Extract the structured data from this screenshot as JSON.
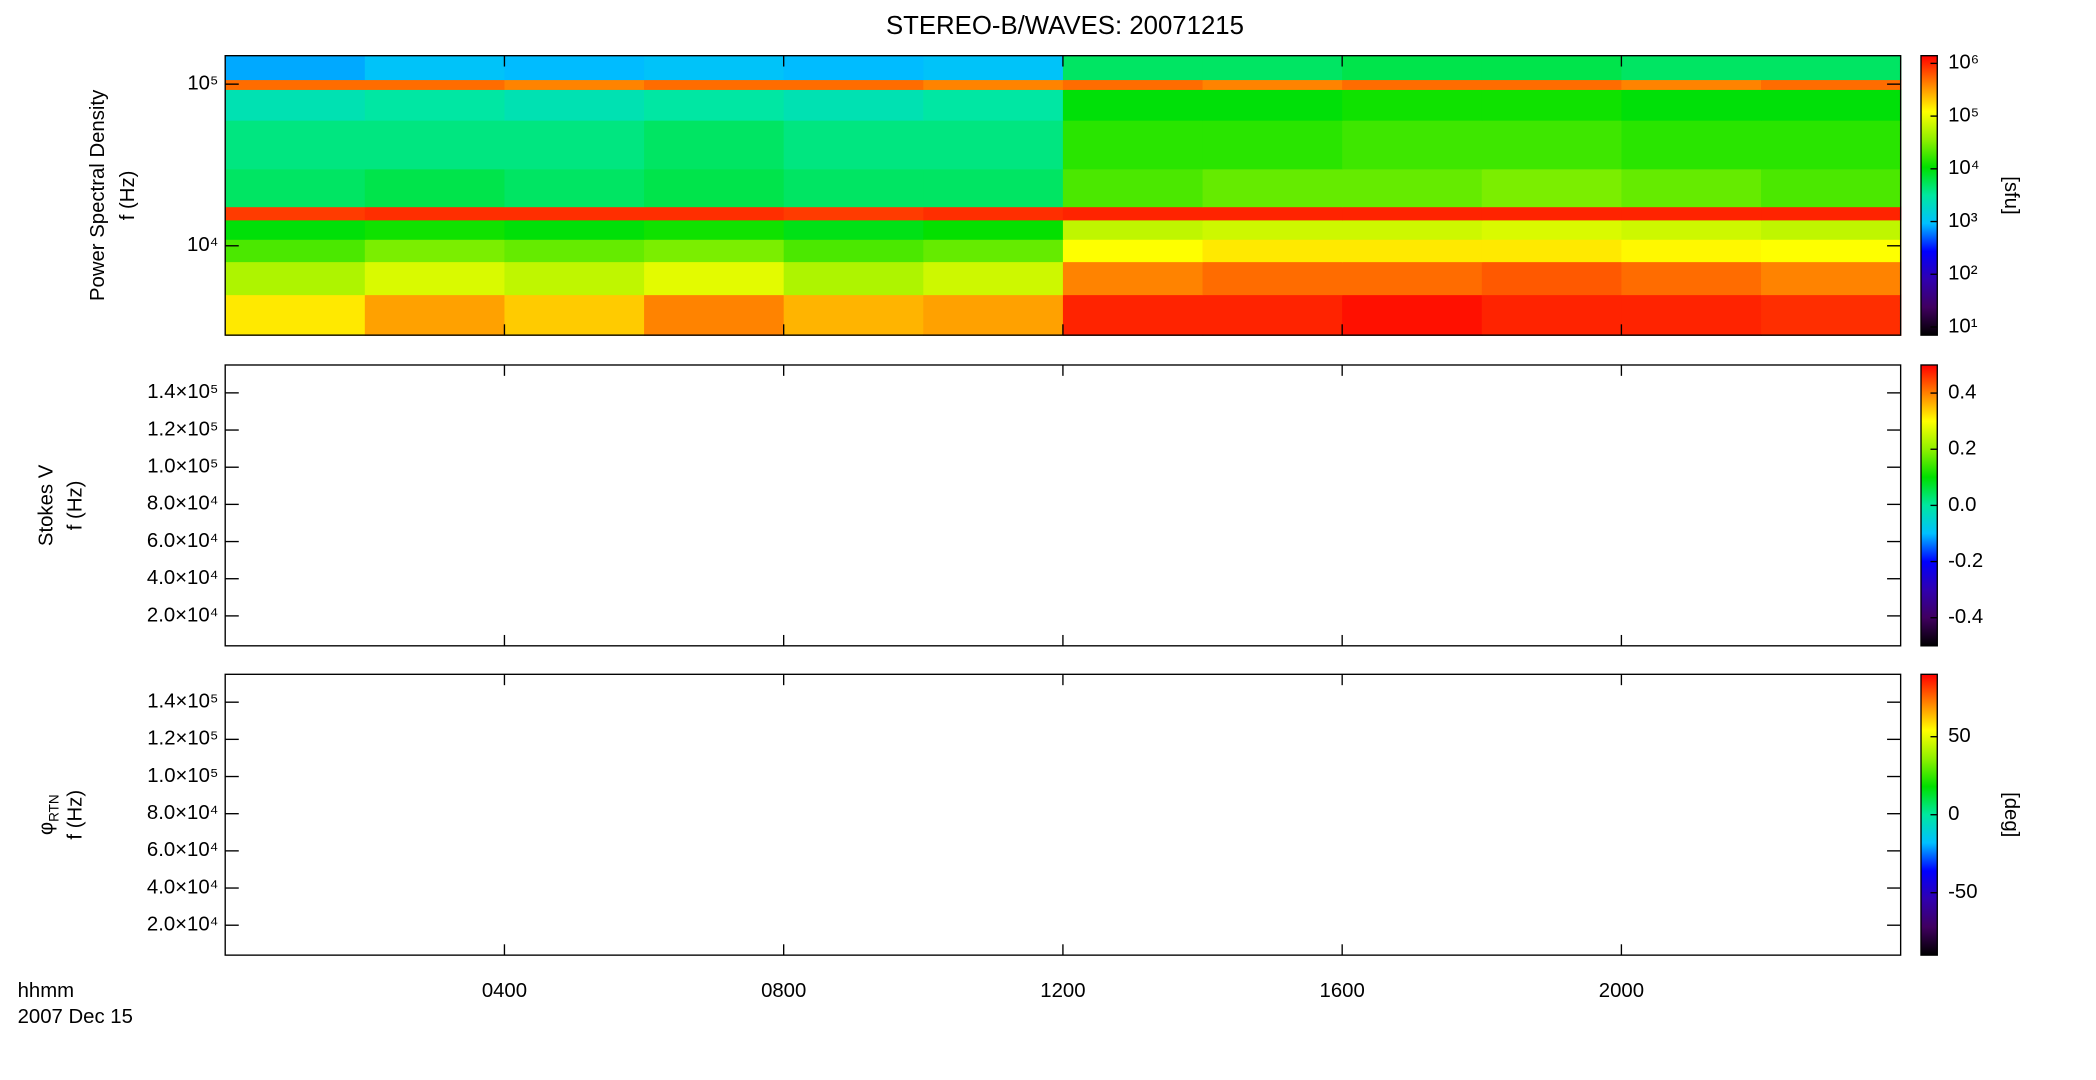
{
  "chart_data": [
    {
      "type": "heatmap",
      "title": "STEREO-B/WAVES: 20071215",
      "ylabel": "Power Spectral Density",
      "ylabel2": "f (Hz)",
      "ylog": true,
      "ylim": [
        2800,
        150000
      ],
      "yticks": [
        {
          "value": 10000,
          "label": "10⁴"
        },
        {
          "value": 100000,
          "label": "10⁵"
        }
      ],
      "xlim": [
        0,
        24
      ],
      "x_bins": [
        0,
        2,
        4,
        6,
        8,
        10,
        12,
        14,
        16,
        18,
        20,
        22,
        24
      ],
      "y_bins": [
        2800,
        5000,
        8000,
        11000,
        14500,
        17500,
        30000,
        60000,
        93000,
        107000,
        150000
      ],
      "values": [
        [
          150000,
          300000,
          200000,
          400000,
          250000,
          300000,
          1000000,
          1000000,
          1200000,
          1000000,
          1000000,
          900000
        ],
        [
          50000,
          80000,
          60000,
          90000,
          50000,
          70000,
          400000,
          500000,
          500000,
          600000,
          500000,
          400000
        ],
        [
          20000,
          30000,
          25000,
          30000,
          20000,
          25000,
          120000,
          150000,
          150000,
          150000,
          130000,
          120000
        ],
        [
          10000,
          12000,
          10000,
          12000,
          9000,
          11000,
          60000,
          70000,
          70000,
          80000,
          70000,
          60000
        ],
        [
          800000,
          900000,
          900000,
          900000,
          800000,
          900000,
          1000000,
          1000000,
          1000000,
          1000000,
          1000000,
          1000000
        ],
        [
          5000,
          6000,
          5000,
          6000,
          5000,
          5000,
          20000,
          25000,
          25000,
          30000,
          25000,
          20000
        ],
        [
          4000,
          4000,
          4000,
          5000,
          4000,
          4000,
          15000,
          15000,
          18000,
          18000,
          15000,
          15000
        ],
        [
          2500,
          3000,
          2500,
          3000,
          2500,
          3000,
          10000,
          10000,
          12000,
          12000,
          10000,
          10000
        ],
        [
          500000,
          500000,
          400000,
          500000,
          500000,
          400000,
          500000,
          400000,
          500000,
          500000,
          400000,
          500000
        ],
        [
          800,
          1000,
          900,
          1000,
          900,
          1000,
          5000,
          5000,
          6000,
          6000,
          5000,
          5000
        ]
      ],
      "colormap": [
        "#000000",
        "#400060",
        "#3000b0",
        "#0000ff",
        "#00c0ff",
        "#00e8a0",
        "#00e000",
        "#90f000",
        "#ffff00",
        "#ff8000",
        "#ff0000"
      ],
      "clog": true,
      "clim": [
        7,
        1400000
      ],
      "cticks": [
        {
          "value": 10,
          "label": "10¹"
        },
        {
          "value": 100,
          "label": "10²"
        },
        {
          "value": 1000,
          "label": "10³"
        },
        {
          "value": 10000,
          "label": "10⁴"
        },
        {
          "value": 100000,
          "label": "10⁵"
        },
        {
          "value": 1000000,
          "label": "10⁶"
        }
      ],
      "clabel": "[sfu]"
    },
    {
      "type": "heatmap",
      "ylabel": "Stokes V",
      "ylabel2": "f (Hz)",
      "ylim": [
        3900,
        155000
      ],
      "yticks": [
        {
          "value": 20000,
          "label": "2.0×10⁴"
        },
        {
          "value": 40000,
          "label": "4.0×10⁴"
        },
        {
          "value": 60000,
          "label": "6.0×10⁴"
        },
        {
          "value": 80000,
          "label": "8.0×10⁴"
        },
        {
          "value": 100000,
          "label": "1.0×10⁵"
        },
        {
          "value": 120000,
          "label": "1.2×10⁵"
        },
        {
          "value": 140000,
          "label": "1.4×10⁵"
        }
      ],
      "xlim": [
        0,
        24
      ],
      "clim": [
        -0.5,
        0.5
      ],
      "cticks": [
        -0.4,
        -0.2,
        {
          "value": 0,
          "label": "0.0"
        },
        0.2,
        0.4
      ]
    },
    {
      "type": "heatmap",
      "ylabel": "φ",
      "ylabel_subscript": "RTN",
      "ylabel2": "f (Hz)",
      "ylim": [
        3900,
        155000
      ],
      "yticks": [
        {
          "value": 20000,
          "label": "2.0×10⁴"
        },
        {
          "value": 40000,
          "label": "4.0×10⁴"
        },
        {
          "value": 60000,
          "label": "6.0×10⁴"
        },
        {
          "value": 80000,
          "label": "8.0×10⁴"
        },
        {
          "value": 100000,
          "label": "1.0×10⁵"
        },
        {
          "value": 120000,
          "label": "1.2×10⁵"
        },
        {
          "value": 140000,
          "label": "1.4×10⁵"
        }
      ],
      "xlim": [
        0,
        24
      ],
      "xticks": [
        {
          "value": 4,
          "label": "0400"
        },
        {
          "value": 8,
          "label": "0800"
        },
        {
          "value": 12,
          "label": "1200"
        },
        {
          "value": 16,
          "label": "1600"
        },
        {
          "value": 20,
          "label": "2000"
        }
      ],
      "xlabel": "hhmm",
      "xlabel2": "2007 Dec 15",
      "clim": [
        -90,
        90
      ],
      "cticks": [
        -50,
        0,
        50
      ],
      "clabel": "[deg]"
    }
  ]
}
